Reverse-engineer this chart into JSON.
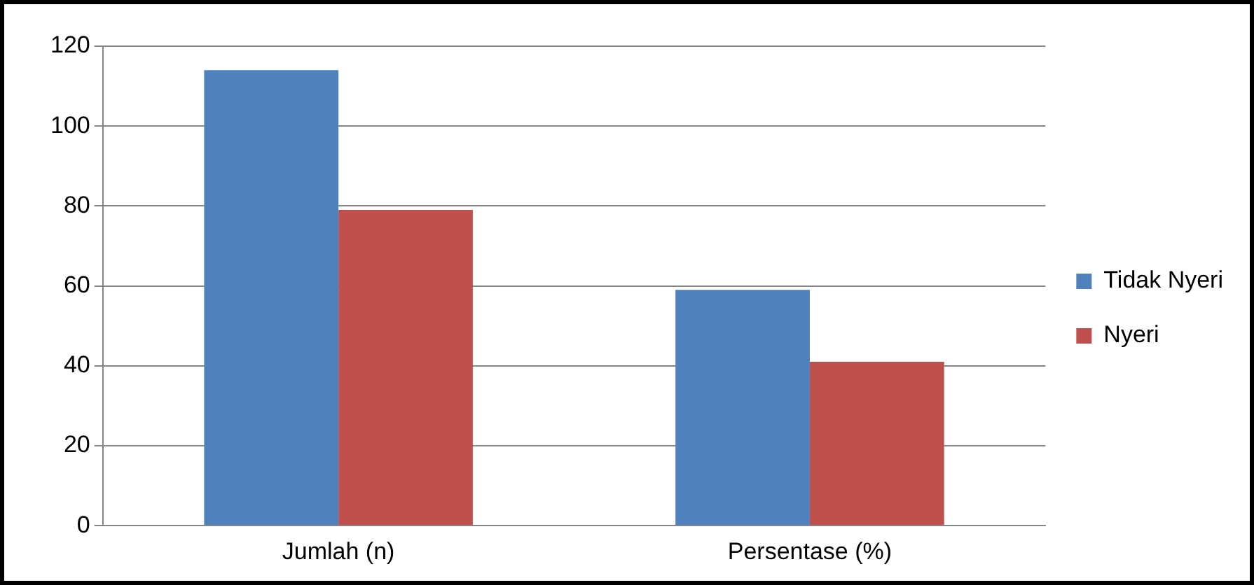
{
  "chart_data": {
    "type": "bar",
    "categories": [
      "Jumlah (n)",
      "Persentase (%)"
    ],
    "series": [
      {
        "name": "Tidak Nyeri",
        "color": "#4f81bd",
        "values": [
          114,
          59
        ]
      },
      {
        "name": "Nyeri",
        "color": "#c0504d",
        "values": [
          79,
          41
        ]
      }
    ],
    "ylim": [
      0,
      120
    ],
    "yticks": [
      0,
      20,
      40,
      60,
      80,
      100,
      120
    ],
    "grid": "y",
    "legend": "right"
  }
}
